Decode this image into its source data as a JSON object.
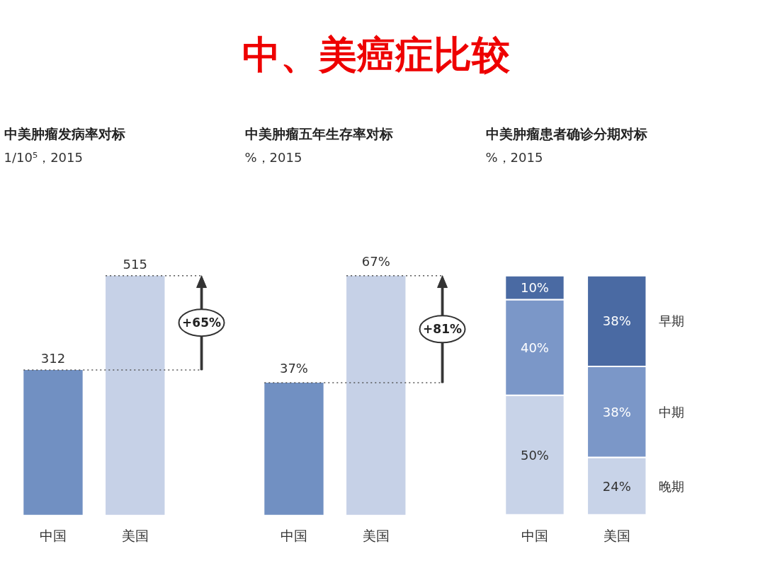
{
  "chart_data": [
    {
      "type": "other",
      "title": "中、美癌症比较",
      "color": "#ee0000"
    },
    {
      "type": "bar",
      "title": "中美肿瘤发病率对标",
      "subtitle": "1/10⁵，2015",
      "categories": [
        "中国",
        "美国"
      ],
      "values": [
        312,
        515
      ],
      "colors": [
        "#7190c2",
        "#c6d1e7"
      ],
      "data_labels": true,
      "ref_lines": [
        {
          "axis": "y",
          "value": 312,
          "line_style": "dotted",
          "color": "#555555"
        },
        {
          "axis": "y",
          "value": 515,
          "line_style": "dotted",
          "color": "#555555"
        }
      ],
      "annotations": [
        "+65%"
      ]
    },
    {
      "type": "bar",
      "title": "中美肿瘤五年生存率对标",
      "subtitle": "%，2015",
      "categories": [
        "中国",
        "美国"
      ],
      "values": [
        37,
        67
      ],
      "colors": [
        "#7190c2",
        "#c6d1e7"
      ],
      "value_labels": [
        "37%",
        "67%"
      ],
      "ref_lines": [
        {
          "axis": "y",
          "value": 37,
          "line_style": "dotted",
          "color": "#555555"
        },
        {
          "axis": "y",
          "value": 67,
          "line_style": "dotted",
          "color": "#555555"
        }
      ],
      "annotations": [
        "+81%"
      ]
    },
    {
      "type": "bar",
      "title": "中美肿瘤患者确诊分期对标",
      "subtitle": "%，2015",
      "categories": [
        "中国",
        "美国"
      ],
      "stacked": true,
      "series": [
        {
          "name": "晚期",
          "color": "#c8d3e8",
          "values": [
            50,
            24
          ],
          "value_labels": [
            "50%",
            "24%"
          ]
        },
        {
          "name": "中期",
          "color": "#7b97c8",
          "values": [
            40,
            38
          ],
          "value_labels": [
            "40%",
            "38%"
          ]
        },
        {
          "name": "早期",
          "color": "#4a6aa3",
          "values": [
            10,
            38
          ],
          "value_labels": [
            "10%",
            "38%"
          ]
        }
      ]
    }
  ]
}
